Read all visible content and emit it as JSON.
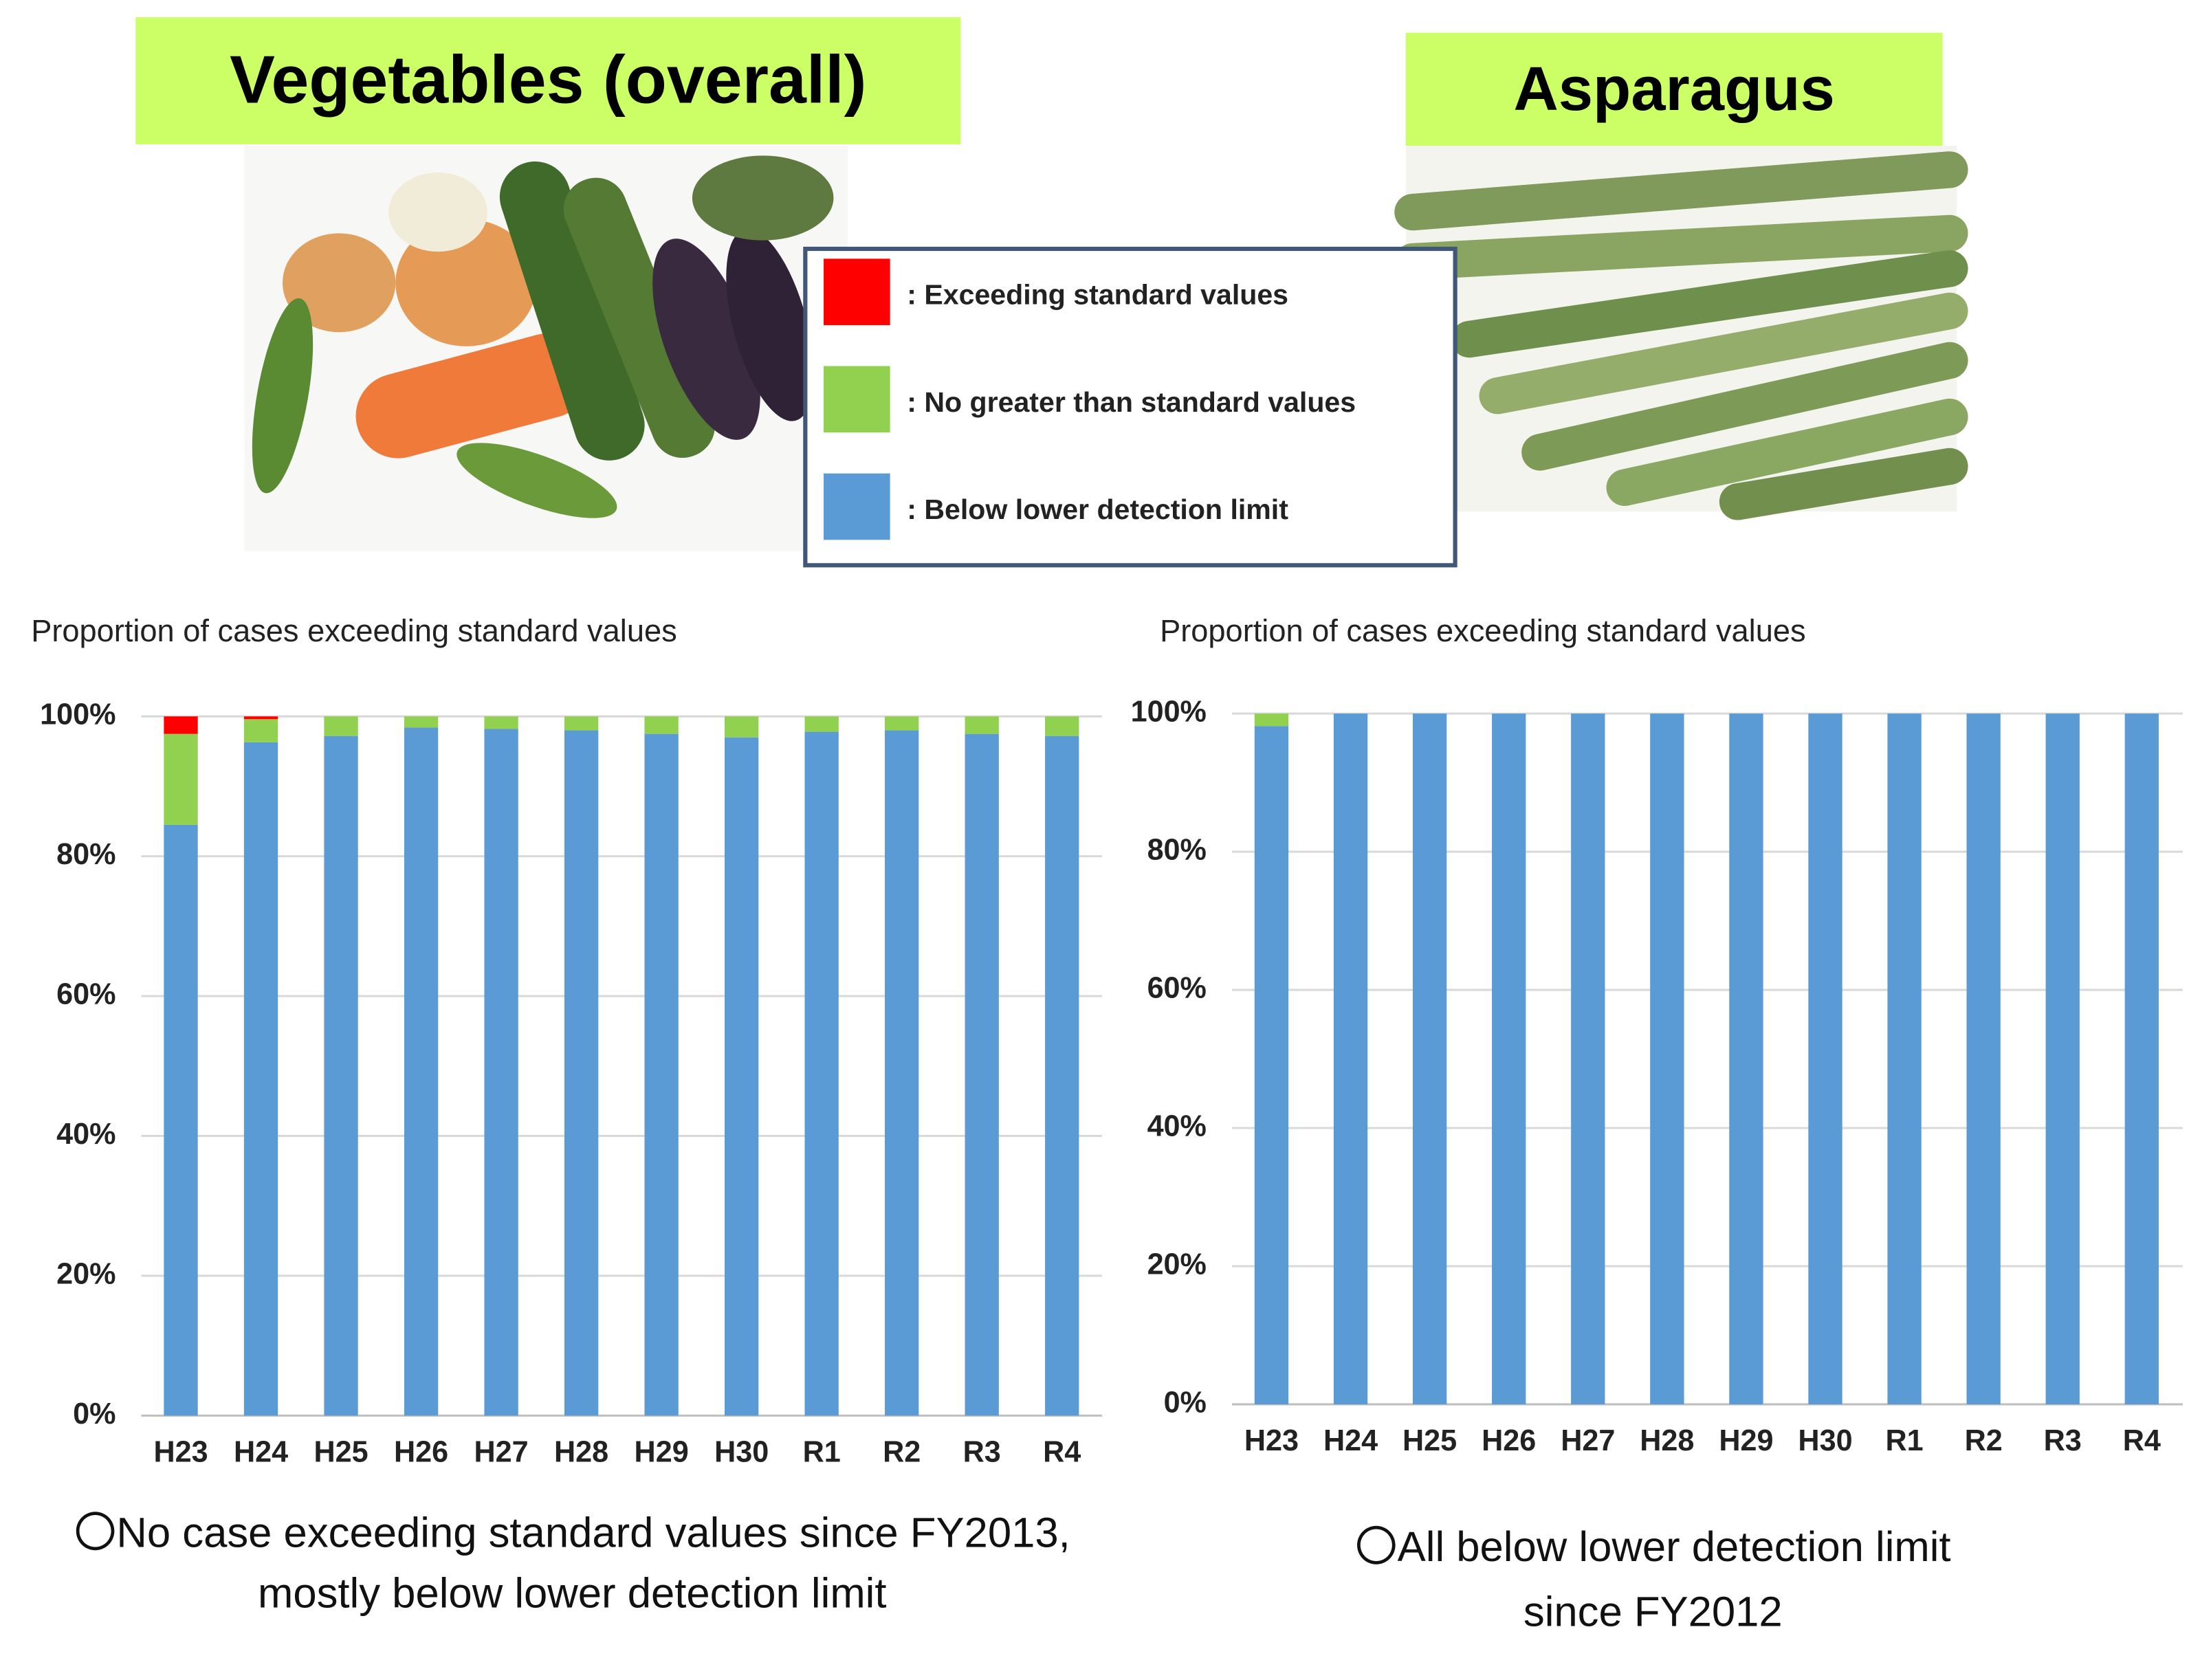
{
  "chart_data": [
    {
      "type": "bar",
      "stacked": true,
      "heading": "Vegetables (overall)",
      "title": "Proportion of cases exceeding standard values",
      "categories": [
        "H23",
        "H24",
        "H25",
        "H26",
        "H27",
        "H28",
        "H29",
        "H30",
        "R1",
        "R2",
        "R3",
        "R4"
      ],
      "series": [
        {
          "name": ": Below lower detection limit",
          "color": "#5b9bd5",
          "values": [
            84.5,
            96.3,
            97.2,
            98.4,
            98.2,
            98.0,
            97.5,
            97.0,
            97.8,
            98.0,
            97.5,
            97.2
          ]
        },
        {
          "name": ": No greater than standard values",
          "color": "#92d050",
          "values": [
            13.0,
            3.3,
            2.8,
            1.6,
            1.8,
            2.0,
            2.5,
            3.0,
            2.2,
            2.0,
            2.5,
            2.8
          ]
        },
        {
          "name": ": Exceeding standard values",
          "color": "#ff0000",
          "values": [
            2.5,
            0.4,
            0,
            0,
            0,
            0,
            0,
            0,
            0,
            0,
            0,
            0
          ]
        }
      ],
      "ylim": [
        0,
        100
      ],
      "yticks": [
        {
          "value": 0,
          "label": "0%"
        },
        {
          "value": 20,
          "label": "20%"
        },
        {
          "value": 40,
          "label": "40%"
        },
        {
          "value": 60,
          "label": "60%"
        },
        {
          "value": 80,
          "label": "80%"
        },
        {
          "value": 100,
          "label": "100%"
        }
      ],
      "grid": true,
      "note_lines": [
        "〇No case exceeding standard values since FY2013,",
        "mostly below lower detection limit"
      ]
    },
    {
      "type": "bar",
      "stacked": true,
      "heading": "Asparagus",
      "title": "Proportion of cases exceeding standard values",
      "categories": [
        "H23",
        "H24",
        "H25",
        "H26",
        "H27",
        "H28",
        "H29",
        "H30",
        "R1",
        "R2",
        "R3",
        "R4"
      ],
      "series": [
        {
          "color": "#5b9bd5",
          "values": [
            98.2,
            100,
            100,
            100,
            100,
            100,
            100,
            100,
            100,
            100,
            100,
            100
          ]
        },
        {
          "color": "#92d050",
          "values": [
            1.8,
            0,
            0,
            0,
            0,
            0,
            0,
            0,
            0,
            0,
            0,
            0
          ]
        },
        {
          "color": "#ff0000",
          "values": [
            0,
            0,
            0,
            0,
            0,
            0,
            0,
            0,
            0,
            0,
            0,
            0
          ]
        }
      ],
      "ylim": [
        0,
        100
      ],
      "yticks": [
        {
          "value": 0,
          "label": "0%"
        },
        {
          "value": 20,
          "label": "20%"
        },
        {
          "value": 40,
          "label": "40%"
        },
        {
          "value": 60,
          "label": "60%"
        },
        {
          "value": 80,
          "label": "80%"
        },
        {
          "value": 100,
          "label": "100%"
        }
      ],
      "grid": true,
      "note_lines": [
        "〇All below lower detection limit",
        "since FY2012"
      ]
    }
  ]
}
